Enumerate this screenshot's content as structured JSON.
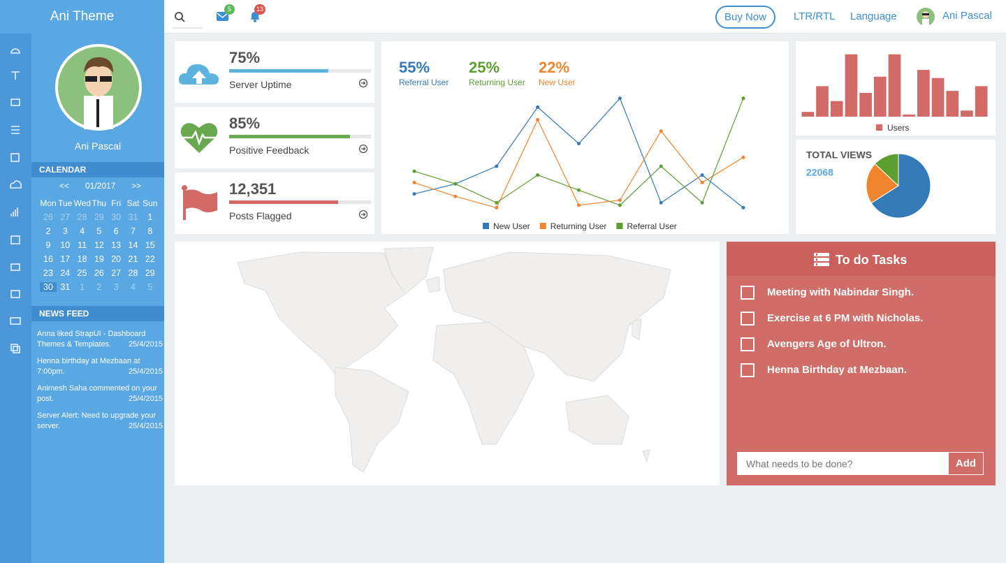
{
  "header": {
    "brand": "Ani Theme",
    "messages": 5,
    "notifications": 13,
    "buy": "Buy Now",
    "direction": "LTR/RTL",
    "language": "Language",
    "user": "Ani Pascal"
  },
  "sidebar": {
    "user": "Ani Pascal",
    "calendar": {
      "title": "CALENDAR",
      "prev": "<<",
      "month": "01/2017",
      "next": ">>",
      "weekdays": [
        "Mon",
        "Tue",
        "Wed",
        "Thu",
        "Fri",
        "Sat",
        "Sun"
      ],
      "weeks": [
        [
          26,
          27,
          28,
          29,
          30,
          31,
          1
        ],
        [
          2,
          3,
          4,
          5,
          6,
          7,
          8
        ],
        [
          9,
          10,
          11,
          12,
          13,
          14,
          15
        ],
        [
          16,
          17,
          18,
          19,
          20,
          21,
          22
        ],
        [
          23,
          24,
          25,
          26,
          27,
          28,
          29
        ],
        [
          30,
          31,
          1,
          2,
          3,
          4,
          5
        ]
      ],
      "today": 30
    },
    "news_title": "NEWS FEED",
    "news": [
      {
        "text": "Anna liked StrapUI - Dashboard Themes & Templates.",
        "date": "25/4/2015"
      },
      {
        "text": "Henna birthday at Mezbaan at 7:00pm.",
        "date": "25/4/2015"
      },
      {
        "text": "Animesh Saha commented on your post.",
        "date": "25/4/2015"
      },
      {
        "text": "Server Alert: Need to upgrade your server.",
        "date": "25/4/2015"
      }
    ]
  },
  "stats": [
    {
      "value": "75%",
      "label": "Server Uptime",
      "progress": 70,
      "color": "#5bb3de"
    },
    {
      "value": "85%",
      "label": "Positive Feedback",
      "progress": 85,
      "color": "#6aa84f"
    },
    {
      "value": "12,351",
      "label": "Posts Flagged",
      "progress": 77,
      "color": "#d26a67"
    }
  ],
  "chart_data": [
    {
      "type": "line",
      "summary": [
        {
          "value": "55%",
          "label": "Referral User",
          "color": "#337ab7"
        },
        {
          "value": "25%",
          "label": "Returning User",
          "color": "#5c9e2f"
        },
        {
          "value": "22%",
          "label": "New User",
          "color": "#f0852d"
        }
      ],
      "ylim": [
        0,
        100
      ],
      "series": [
        {
          "name": "New User",
          "color": "#337ab7",
          "values": [
            18,
            26,
            40,
            87,
            58,
            94,
            11,
            33,
            7
          ]
        },
        {
          "name": "Returning User",
          "color": "#f0852d",
          "values": [
            27,
            16,
            7,
            77,
            9,
            13,
            68,
            27,
            47
          ]
        },
        {
          "name": "Referral User",
          "color": "#5c9e2f",
          "values": [
            36,
            26,
            11,
            33,
            21,
            9,
            40,
            11,
            94
          ]
        }
      ]
    },
    {
      "type": "bar",
      "ylim": [
        0,
        100
      ],
      "series": [
        {
          "name": "Users",
          "color": "#d26a67",
          "values": [
            7,
            45,
            23,
            92,
            35,
            59,
            92,
            3,
            69,
            57,
            38,
            9,
            45
          ]
        }
      ]
    },
    {
      "type": "pie",
      "title": "TOTAL VIEWS",
      "total": 22068,
      "values": [
        66,
        21,
        13
      ],
      "colors": [
        "#337ab7",
        "#f0852d",
        "#5c9e2f"
      ]
    }
  ],
  "todo": {
    "title": "To do Tasks",
    "items": [
      "Meeting with Nabindar Singh.",
      "Exercise at 6 PM with Nicholas.",
      "Avengers Age of Ultron.",
      "Henna Birthday at Mezbaan."
    ],
    "placeholder": "What needs to be done?",
    "button": "Add"
  }
}
